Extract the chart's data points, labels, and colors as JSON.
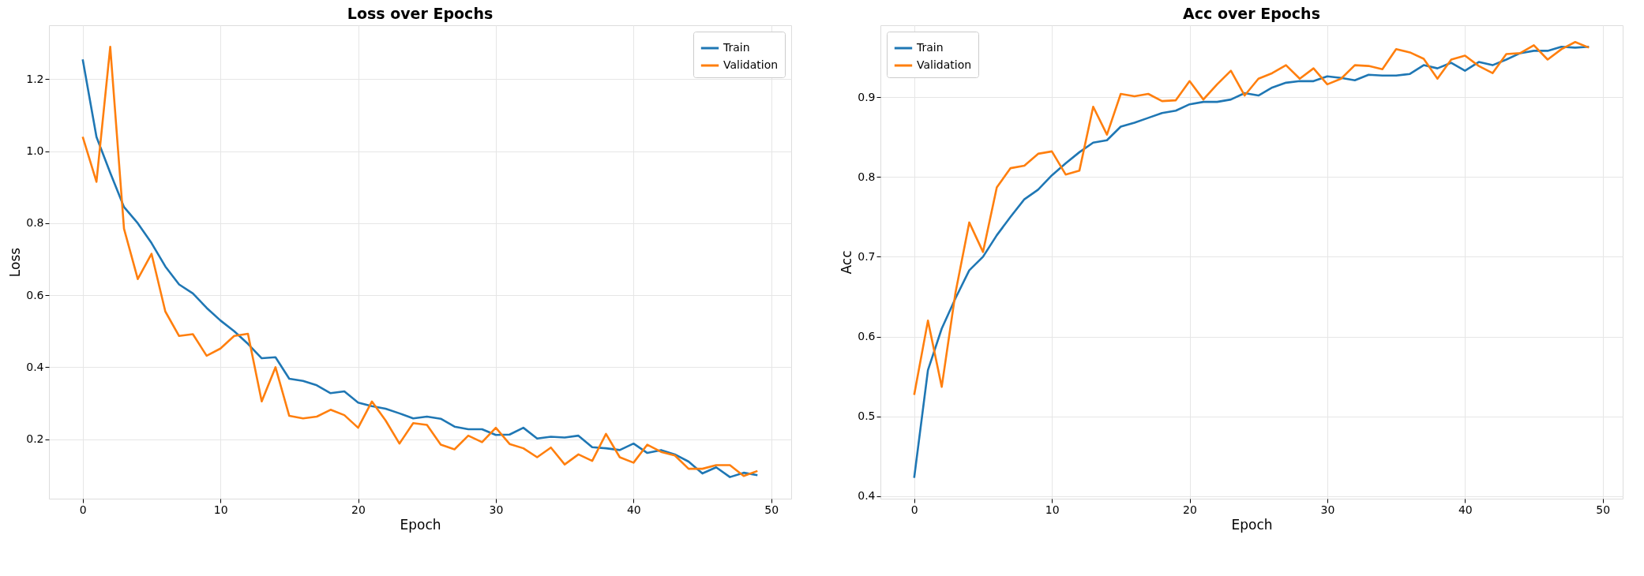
{
  "chart_data": [
    {
      "type": "line",
      "title": "Loss over Epochs",
      "xlabel": "Epoch",
      "ylabel": "Loss",
      "legend": "top right",
      "grid": true,
      "line_style": "solid",
      "x": [
        0,
        1,
        2,
        3,
        4,
        5,
        6,
        7,
        8,
        9,
        10,
        11,
        12,
        13,
        14,
        15,
        16,
        17,
        18,
        19,
        20,
        21,
        22,
        23,
        24,
        25,
        26,
        27,
        28,
        29,
        30,
        31,
        32,
        33,
        34,
        35,
        36,
        37,
        38,
        39,
        40,
        41,
        42,
        43,
        44,
        45,
        46,
        47,
        48,
        49
      ],
      "xlim": [
        -2.45,
        51.45
      ],
      "xticks": [
        0,
        10,
        20,
        30,
        40,
        50
      ],
      "ylim": [
        0.035,
        1.35
      ],
      "yticks": [
        0.2,
        0.4,
        0.6,
        0.8,
        {
          "value": 1.0,
          "label": "1.0"
        },
        1.2
      ],
      "series": [
        {
          "name": "Train",
          "color": "#1f77b4",
          "values": [
            1.255,
            1.04,
            0.94,
            0.845,
            0.8,
            0.745,
            0.68,
            0.63,
            0.605,
            0.565,
            0.53,
            0.5,
            0.465,
            0.425,
            0.428,
            0.368,
            0.362,
            0.35,
            0.328,
            0.333,
            0.302,
            0.292,
            0.285,
            0.272,
            0.258,
            0.263,
            0.257,
            0.235,
            0.228,
            0.228,
            0.212,
            0.213,
            0.232,
            0.202,
            0.207,
            0.205,
            0.21,
            0.178,
            0.175,
            0.17,
            0.188,
            0.162,
            0.17,
            0.158,
            0.138,
            0.105,
            0.122,
            0.095,
            0.107,
            0.1
          ]
        },
        {
          "name": "Validation",
          "color": "#ff7f0e",
          "values": [
            1.04,
            0.915,
            1.29,
            0.785,
            0.645,
            0.715,
            0.555,
            0.487,
            0.492,
            0.432,
            0.452,
            0.487,
            0.493,
            0.305,
            0.4,
            0.265,
            0.258,
            0.263,
            0.282,
            0.267,
            0.232,
            0.305,
            0.252,
            0.188,
            0.245,
            0.24,
            0.185,
            0.172,
            0.21,
            0.192,
            0.232,
            0.187,
            0.175,
            0.15,
            0.177,
            0.13,
            0.158,
            0.14,
            0.215,
            0.15,
            0.135,
            0.185,
            0.165,
            0.155,
            0.118,
            0.118,
            0.128,
            0.128,
            0.098,
            0.112
          ]
        }
      ]
    },
    {
      "type": "line",
      "title": "Acc over Epochs",
      "xlabel": "Epoch",
      "ylabel": "Acc",
      "legend": "top left",
      "grid": true,
      "line_style": "solid",
      "x": [
        0,
        1,
        2,
        3,
        4,
        5,
        6,
        7,
        8,
        9,
        10,
        11,
        12,
        13,
        14,
        15,
        16,
        17,
        18,
        19,
        20,
        21,
        22,
        23,
        24,
        25,
        26,
        27,
        28,
        29,
        30,
        31,
        32,
        33,
        34,
        35,
        36,
        37,
        38,
        39,
        40,
        41,
        42,
        43,
        44,
        45,
        46,
        47,
        48,
        49
      ],
      "xlim": [
        -2.45,
        51.45
      ],
      "xticks": [
        0,
        10,
        20,
        30,
        40,
        50
      ],
      "ylim": [
        0.397,
        0.99
      ],
      "yticks": [
        0.4,
        0.5,
        0.6,
        0.7,
        0.8,
        0.9
      ],
      "series": [
        {
          "name": "Train",
          "color": "#1f77b4",
          "values": [
            0.423,
            0.558,
            0.61,
            0.648,
            0.683,
            0.7,
            0.727,
            0.75,
            0.772,
            0.784,
            0.802,
            0.817,
            0.831,
            0.843,
            0.846,
            0.863,
            0.868,
            0.874,
            0.88,
            0.883,
            0.891,
            0.894,
            0.894,
            0.897,
            0.905,
            0.902,
            0.912,
            0.918,
            0.92,
            0.92,
            0.926,
            0.924,
            0.921,
            0.928,
            0.927,
            0.927,
            0.929,
            0.94,
            0.936,
            0.943,
            0.933,
            0.944,
            0.94,
            0.947,
            0.955,
            0.958,
            0.958,
            0.963,
            0.962,
            0.963
          ]
        },
        {
          "name": "Validation",
          "color": "#ff7f0e",
          "values": [
            0.527,
            0.62,
            0.537,
            0.655,
            0.743,
            0.706,
            0.787,
            0.811,
            0.814,
            0.829,
            0.832,
            0.803,
            0.808,
            0.888,
            0.853,
            0.904,
            0.901,
            0.904,
            0.895,
            0.896,
            0.92,
            0.897,
            0.916,
            0.933,
            0.902,
            0.923,
            0.93,
            0.94,
            0.923,
            0.936,
            0.916,
            0.923,
            0.94,
            0.939,
            0.935,
            0.96,
            0.956,
            0.948,
            0.923,
            0.947,
            0.952,
            0.939,
            0.93,
            0.954,
            0.955,
            0.965,
            0.947,
            0.96,
            0.969,
            0.962
          ]
        }
      ]
    }
  ]
}
